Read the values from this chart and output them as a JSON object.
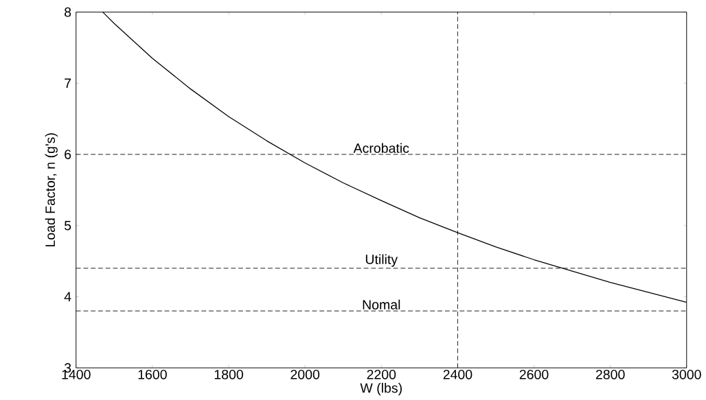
{
  "chart_data": {
    "type": "line",
    "xlabel": "W (lbs)",
    "ylabel": "Load Factor, n (g's)",
    "x": [
      1470,
      1500,
      1600,
      1700,
      1800,
      1900,
      2000,
      2100,
      2200,
      2300,
      2400,
      2500,
      2600,
      2700,
      2800,
      2900,
      3000
    ],
    "series": [
      {
        "color": "#000000",
        "values": [
          8.0,
          7.84,
          7.35,
          6.92,
          6.53,
          6.19,
          5.88,
          5.6,
          5.35,
          5.11,
          4.9,
          4.7,
          4.52,
          4.36,
          4.2,
          4.06,
          3.92
        ]
      }
    ],
    "xlim": [
      1400,
      3000
    ],
    "ylim": [
      3,
      8
    ],
    "xticks": [
      1400,
      1600,
      1800,
      2000,
      2200,
      2400,
      2600,
      2800,
      3000
    ],
    "yticks": [
      3,
      4,
      5,
      6,
      7,
      8
    ],
    "ref_lines": [
      {
        "axis": "y",
        "value": 6,
        "label": "Acrobatic",
        "line_style": "dashed"
      },
      {
        "axis": "y",
        "value": 4.4,
        "label": "Utility",
        "line_style": "dashed"
      },
      {
        "axis": "y",
        "value": 3.8,
        "label": "Nomal",
        "line_style": "dashed"
      },
      {
        "axis": "x",
        "value": 2400,
        "line_style": "dashed"
      }
    ],
    "grid": false,
    "marker": "none",
    "line_style": "solid"
  }
}
